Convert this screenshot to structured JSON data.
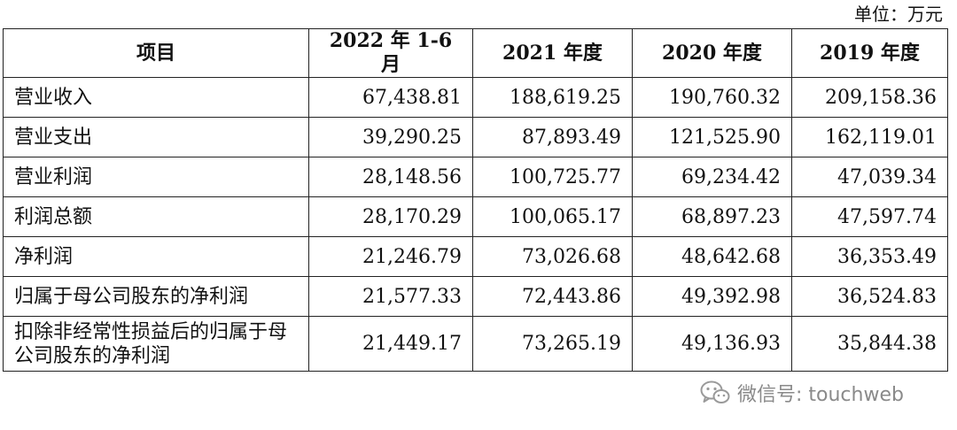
{
  "unit_label": "单位：万元",
  "table": {
    "headers": [
      "项目",
      "2022 年 1-6 月",
      "2021 年度",
      "2020 年度",
      "2019 年度"
    ],
    "rows": [
      {
        "label": "营业收入",
        "values": [
          "67,438.81",
          "188,619.25",
          "190,760.32",
          "209,158.36"
        ]
      },
      {
        "label": "营业支出",
        "values": [
          "39,290.25",
          "87,893.49",
          "121,525.90",
          "162,119.01"
        ]
      },
      {
        "label": "营业利润",
        "values": [
          "28,148.56",
          "100,725.77",
          "69,234.42",
          "47,039.34"
        ]
      },
      {
        "label": "利润总额",
        "values": [
          "28,170.29",
          "100,065.17",
          "68,897.23",
          "47,597.74"
        ]
      },
      {
        "label": "净利润",
        "values": [
          "21,246.79",
          "73,026.68",
          "48,642.68",
          "36,353.49"
        ]
      },
      {
        "label": "归属于母公司股东的净利润",
        "values": [
          "21,577.33",
          "72,443.86",
          "49,392.98",
          "36,524.83"
        ]
      },
      {
        "label": "扣除非经常性损益后的归属于母公司股东的净利润",
        "values": [
          "21,449.17",
          "73,265.19",
          "49,136.93",
          "35,844.38"
        ]
      }
    ]
  },
  "watermark": {
    "text": "微信号: touchweb",
    "icon": "wechat-icon"
  }
}
